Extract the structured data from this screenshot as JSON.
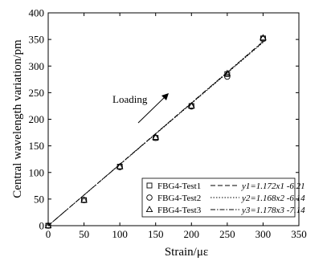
{
  "chart_data": {
    "type": "scatter",
    "xlabel": "Strain/με",
    "ylabel": "Central wavelength variation/pm",
    "xlim": [
      0,
      350
    ],
    "ylim": [
      0,
      400
    ],
    "xticks": [
      0,
      50,
      100,
      150,
      200,
      250,
      300,
      350
    ],
    "yticks": [
      0,
      50,
      100,
      150,
      200,
      250,
      300,
      350,
      400
    ],
    "xtick_labels": [
      "0",
      "50",
      "100",
      "150",
      "200",
      "250",
      "300",
      "350"
    ],
    "ytick_labels": [
      "0",
      "50",
      "100",
      "150",
      "200",
      "250",
      "300",
      "350",
      "400"
    ],
    "grid": false,
    "legend_position": "bottom-right",
    "annotation": "Loading",
    "x": [
      0,
      50,
      100,
      150,
      200,
      250,
      300
    ],
    "series": [
      {
        "name": "FBG4-Test1",
        "marker": "square",
        "line_style": "dashed",
        "fit_label": "y1=1.172x1 -6.21",
        "fit": {
          "slope": 1.172,
          "intercept": -6.21
        },
        "values": [
          0,
          48,
          111,
          165,
          225,
          285,
          352
        ]
      },
      {
        "name": "FBG4-Test2",
        "marker": "circle",
        "line_style": "dotted",
        "fit_label": "y2=1.168x2 -6.14",
        "fit": {
          "slope": 1.168,
          "intercept": -6.14
        },
        "values": [
          0,
          48,
          110,
          165,
          224,
          280,
          351
        ]
      },
      {
        "name": "FBG4-Test3",
        "marker": "triangle",
        "line_style": "dash-dot",
        "fit_label": "y3=1.178x3 -7.14",
        "fit": {
          "slope": 1.178,
          "intercept": -7.14
        },
        "values": [
          0,
          48,
          111,
          166,
          225,
          286,
          353
        ]
      }
    ]
  }
}
